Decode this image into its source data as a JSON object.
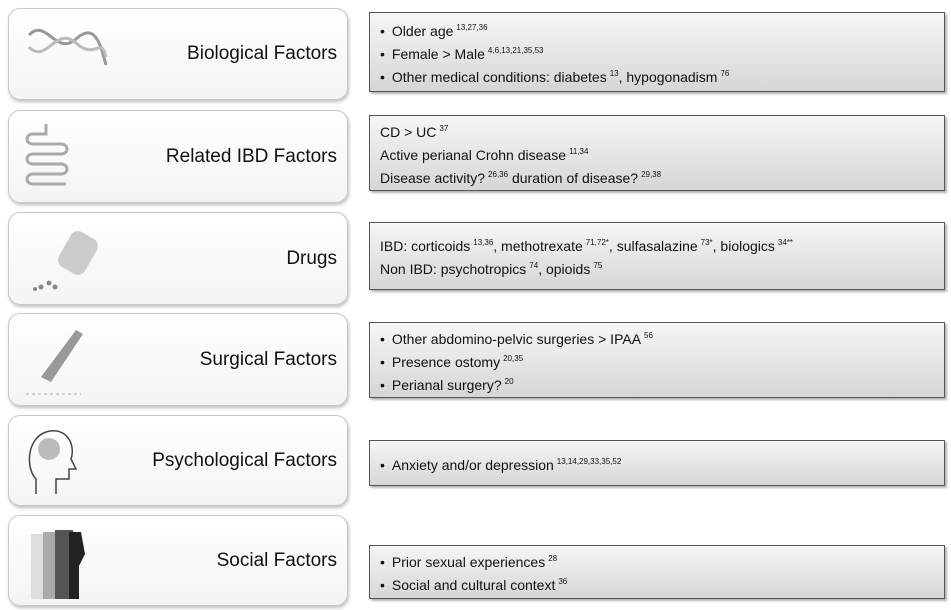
{
  "rows": [
    {
      "label": "Biological Factors",
      "items": [
        [
          "Older age",
          {
            "sup": "13,27,36"
          }
        ],
        [
          "Female > Male",
          {
            "sup": "4,6,13,21,35,53"
          }
        ],
        [
          "Other medical conditions: diabetes",
          {
            "sup": "13"
          },
          ", hypogonadism",
          {
            "sup": "76"
          }
        ]
      ]
    },
    {
      "label": "Related IBD Factors",
      "items": [
        [
          "CD > UC",
          {
            "sup": "37"
          }
        ],
        [
          "Active perianal Crohn disease",
          {
            "sup": "11,34"
          }
        ],
        [
          "Disease activity?",
          {
            "sup": "26,36"
          },
          " duration of disease?",
          {
            "sup": "29,38"
          }
        ]
      ]
    },
    {
      "label": "Drugs",
      "items": [
        [
          "IBD: corticoids",
          {
            "sup": "13,36"
          },
          ", methotrexate",
          {
            "sup": "71,72*"
          },
          ", sulfasalazine",
          {
            "sup": "73*"
          },
          ", biologics",
          {
            "sup": "34**"
          }
        ],
        [
          "Non IBD: psychotropics",
          {
            "sup": "74"
          },
          ", opioids",
          {
            "sup": "75"
          }
        ]
      ]
    },
    {
      "label": "Surgical Factors",
      "items": [
        [
          "Other abdomino-pelvic surgeries > IPAA",
          {
            "sup": "56"
          }
        ],
        [
          "Presence ostomy",
          {
            "sup": "20,35"
          }
        ],
        [
          "Perianal surgery?",
          {
            "sup": "20"
          }
        ]
      ]
    },
    {
      "label": "Psychological Factors",
      "items": [
        [
          "Anxiety and/or depression",
          {
            "sup": "13,14,29,33,35,52"
          }
        ]
      ]
    },
    {
      "label": "Social Factors",
      "items": [
        [
          "Prior sexual experiences",
          {
            "sup": "28"
          }
        ],
        [
          "Social and cultural context",
          {
            "sup": "36"
          }
        ]
      ]
    }
  ]
}
